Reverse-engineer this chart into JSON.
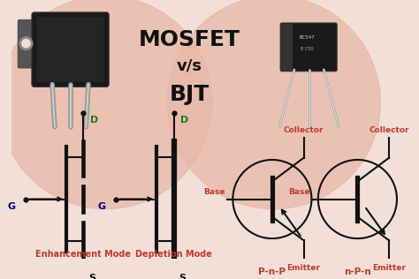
{
  "bg_color": "#f2e0d8",
  "title_line1": "MOSFET",
  "title_line2": "v/s",
  "title_line3": "BJT",
  "title_color": "#111111",
  "title_fontsize": 18,
  "subtitle_fontsize": 13,
  "label_color_dark_red": "#c0392b",
  "label_color_green": "#1a7a1a",
  "label_color_blue": "#00008b",
  "label_color_dark": "#111111",
  "circle_color": "#e8b8a8",
  "bottom_labels": [
    "Enhancement Mode",
    "Depletion Mode"
  ],
  "mosfet_color": "#1a1a1a",
  "bjt_color": "#1a1a1a",
  "lead_color": "#aaaaaa",
  "lead_color2": "#888888"
}
